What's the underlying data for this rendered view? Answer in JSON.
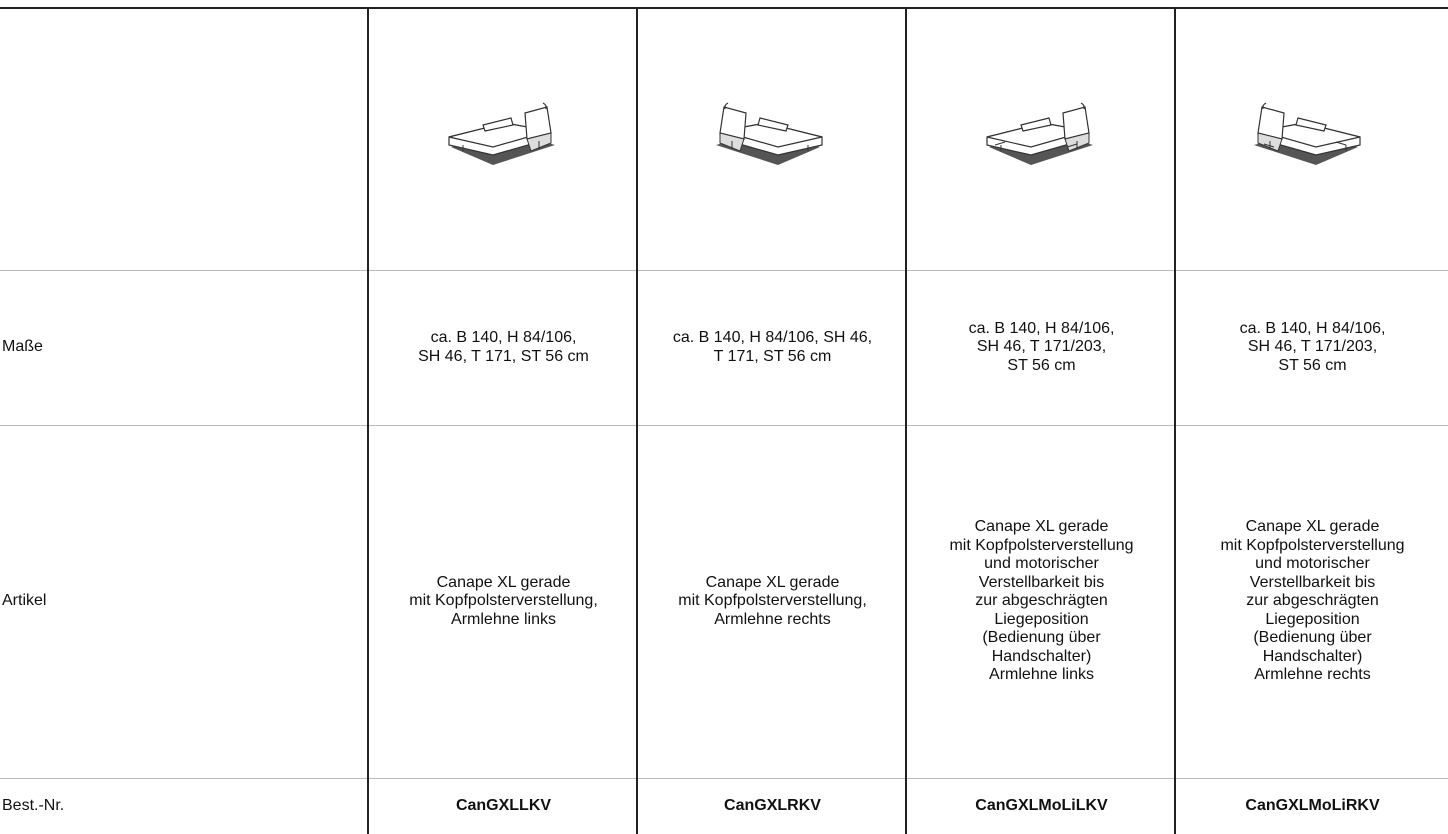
{
  "table": {
    "rows": [
      {
        "label": "Maße",
        "cells": [
          [
            "ca. B 140, H 84/106,",
            "SH 46, T 171, ST 56 cm"
          ],
          [
            "ca. B 140, H 84/106, SH 46,",
            "T 171, ST 56 cm"
          ],
          [
            "ca. B 140, H 84/106,",
            "SH 46, T 171/203,",
            "ST 56 cm"
          ],
          [
            "ca. B 140, H 84/106,",
            "SH 46, T 171/203,",
            "ST 56 cm"
          ]
        ]
      },
      {
        "label": "Artikel",
        "cells": [
          [
            "Canape XL gerade",
            "mit Kopfpolsterverstellung,",
            "Armlehne links"
          ],
          [
            "Canape XL gerade",
            "mit Kopfpolsterverstellung,",
            "Armlehne rechts"
          ],
          [
            "Canape XL gerade",
            "mit Kopfpolsterverstellung",
            "und motorischer",
            "Verstellbarkeit bis",
            "zur abgeschrägten",
            "Liegeposition",
            "(Bedienung über",
            "Handschalter)",
            "Armlehne links"
          ],
          [
            "Canape XL gerade",
            "mit Kopfpolsterverstellung",
            "und motorischer",
            "Verstellbarkeit bis",
            "zur abgeschrägten",
            "Liegeposition",
            "(Bedienung über",
            "Handschalter)",
            "Armlehne rechts"
          ]
        ]
      },
      {
        "label": "Best.-Nr.",
        "cells": [
          [
            "CanGXLLKV"
          ],
          [
            "CanGXLRKV"
          ],
          [
            "CanGXLMoLiLKV"
          ],
          [
            "CanGXLMoLiRKV"
          ]
        ]
      }
    ]
  }
}
